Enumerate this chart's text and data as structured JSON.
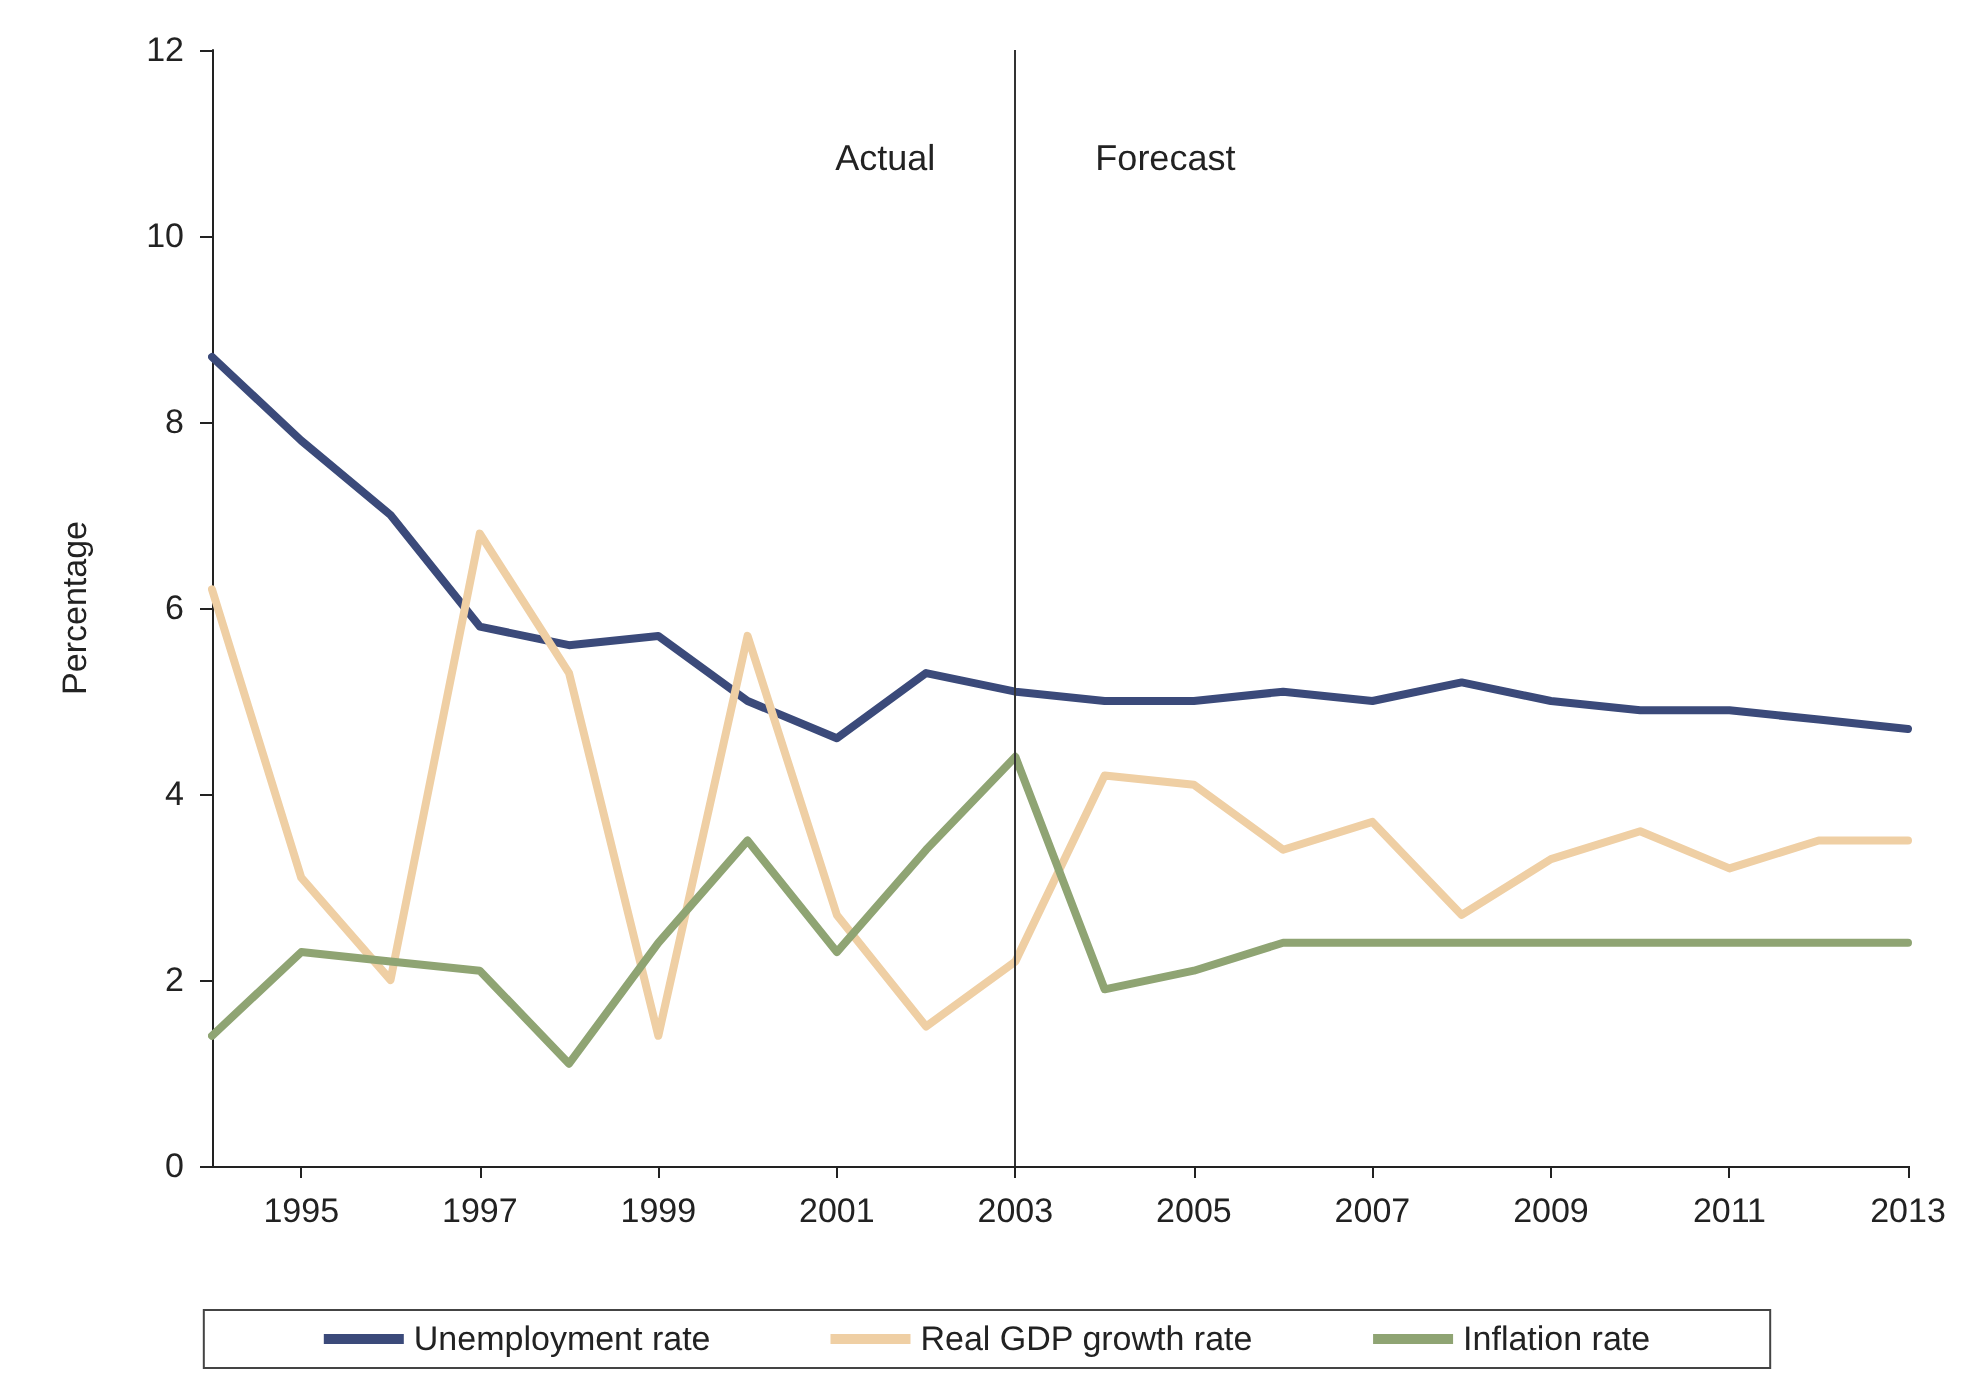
{
  "chart_data": {
    "type": "line",
    "ylabel": "Percentage",
    "x": [
      1994,
      1995,
      1996,
      1997,
      1998,
      1999,
      2000,
      2001,
      2002,
      2003,
      2004,
      2005,
      2006,
      2007,
      2008,
      2009,
      2010,
      2011,
      2012,
      2013
    ],
    "series": [
      {
        "name": "Unemployment rate",
        "color": "#3b4a7a",
        "values": [
          8.7,
          7.8,
          7.0,
          5.8,
          5.6,
          5.7,
          5.0,
          4.6,
          5.3,
          5.1,
          5.0,
          5.0,
          5.1,
          5.0,
          5.2,
          5.0,
          4.9,
          4.9,
          4.8,
          4.7
        ]
      },
      {
        "name": "Real GDP growth rate",
        "color": "#efcfa4",
        "values": [
          6.2,
          3.1,
          2.0,
          6.8,
          5.3,
          1.4,
          5.7,
          2.7,
          1.5,
          2.2,
          4.2,
          4.1,
          3.4,
          3.7,
          2.7,
          3.3,
          3.6,
          3.2,
          3.5,
          3.5
        ]
      },
      {
        "name": "Inflation rate",
        "color": "#8fa473",
        "values": [
          1.4,
          2.3,
          2.2,
          2.1,
          1.1,
          2.4,
          3.5,
          2.3,
          3.4,
          4.4,
          1.9,
          2.1,
          2.4,
          2.4,
          2.4,
          2.4,
          2.4,
          2.4,
          2.4,
          2.4
        ]
      }
    ],
    "xlim": [
      1994,
      2013
    ],
    "xticks": [
      1995,
      1997,
      1999,
      2001,
      2003,
      2005,
      2007,
      2009,
      2011,
      2013
    ],
    "ylim": [
      0,
      12
    ],
    "yticks": [
      0,
      2,
      4,
      6,
      8,
      10,
      12
    ],
    "ref_lines": [
      {
        "axis": "x",
        "value": 2003,
        "color": "#333333"
      }
    ],
    "annotations": [
      "Actual",
      "Forecast"
    ],
    "grid": false,
    "legend": "bottom",
    "marker": "none",
    "line_style": "solid"
  }
}
